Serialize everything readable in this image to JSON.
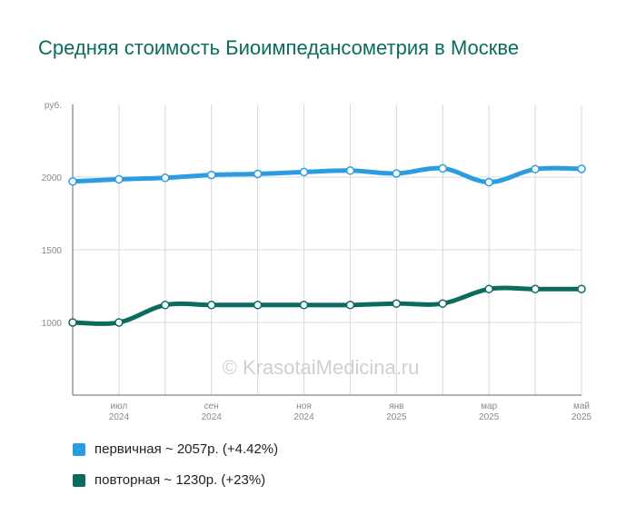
{
  "chart_data": {
    "type": "line",
    "title": "Средняя стоимость Биоимпедансометрия в Москве",
    "ylabel": "руб.",
    "ylim": [
      500,
      2500
    ],
    "yticks": [
      1000,
      1500,
      2000
    ],
    "x_ticks": [
      {
        "month": "июл",
        "year": "2024"
      },
      {
        "month": "сен",
        "year": "2024"
      },
      {
        "month": "ноя",
        "year": "2024"
      },
      {
        "month": "янв",
        "year": "2025"
      },
      {
        "month": "мар",
        "year": "2025"
      },
      {
        "month": "май",
        "year": "2025"
      }
    ],
    "x": [
      "2024-06",
      "2024-07",
      "2024-08",
      "2024-09",
      "2024-10",
      "2024-11",
      "2024-12",
      "2025-01",
      "2025-02",
      "2025-03",
      "2025-04",
      "2025-05"
    ],
    "series": [
      {
        "name": "первичная",
        "color": "#2a9de0",
        "values": [
          1970,
          1985,
          1995,
          2015,
          2022,
          2035,
          2045,
          2025,
          2060,
          1965,
          2055,
          2057
        ]
      },
      {
        "name": "повторная",
        "color": "#0b6b5f",
        "values": [
          1000,
          1000,
          1120,
          1120,
          1120,
          1120,
          1120,
          1130,
          1130,
          1230,
          1230,
          1230
        ]
      }
    ],
    "watermark": "© KrasotaiMedicina.ru",
    "grid": true
  },
  "legend": [
    {
      "label": "первичная ~ 2057р. (+4.42%)",
      "color": "#2a9de0"
    },
    {
      "label": "повторная ~ 1230р. (+23%)",
      "color": "#0b6b5f"
    }
  ]
}
